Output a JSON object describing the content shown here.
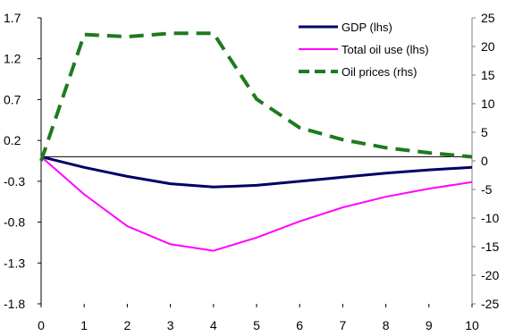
{
  "chart_data": {
    "type": "line",
    "x": [
      0,
      1,
      2,
      3,
      4,
      5,
      6,
      7,
      8,
      9,
      10
    ],
    "xlim": [
      0,
      10
    ],
    "ylim_left": [
      -1.8,
      1.7
    ],
    "ylim_right": [
      -25,
      25
    ],
    "left_ticks": [
      "1.7",
      "1.2",
      "0.7",
      "0.2",
      "-0.3",
      "-0.8",
      "-1.3",
      "-1.8"
    ],
    "right_ticks": [
      "25",
      "20",
      "15",
      "10",
      "5",
      "0",
      "-5",
      "-10",
      "-15",
      "-20",
      "-25"
    ],
    "x_ticks": [
      "0",
      "1",
      "2",
      "3",
      "4",
      "5",
      "6",
      "7",
      "8",
      "9",
      "10"
    ],
    "zero_line": true,
    "grid": false,
    "legend_position": "top-right",
    "series": [
      {
        "name": "GDP (lhs)",
        "axis": "left",
        "color": "#000066",
        "style": "solid",
        "values": [
          0.0,
          -0.13,
          -0.24,
          -0.33,
          -0.37,
          -0.35,
          -0.3,
          -0.25,
          -0.2,
          -0.16,
          -0.13
        ]
      },
      {
        "name": "Total oil use (lhs)",
        "axis": "left",
        "color": "#ff00ff",
        "style": "solid",
        "values": [
          0.0,
          -0.46,
          -0.85,
          -1.07,
          -1.15,
          -0.99,
          -0.79,
          -0.62,
          -0.49,
          -0.39,
          -0.31
        ]
      },
      {
        "name": "Oil prices (rhs)",
        "axis": "right",
        "color": "#1f7a1f",
        "style": "dashed",
        "values": [
          0.0,
          22.1,
          21.7,
          22.3,
          22.3,
          10.8,
          5.8,
          3.7,
          2.3,
          1.4,
          0.7
        ]
      }
    ]
  }
}
